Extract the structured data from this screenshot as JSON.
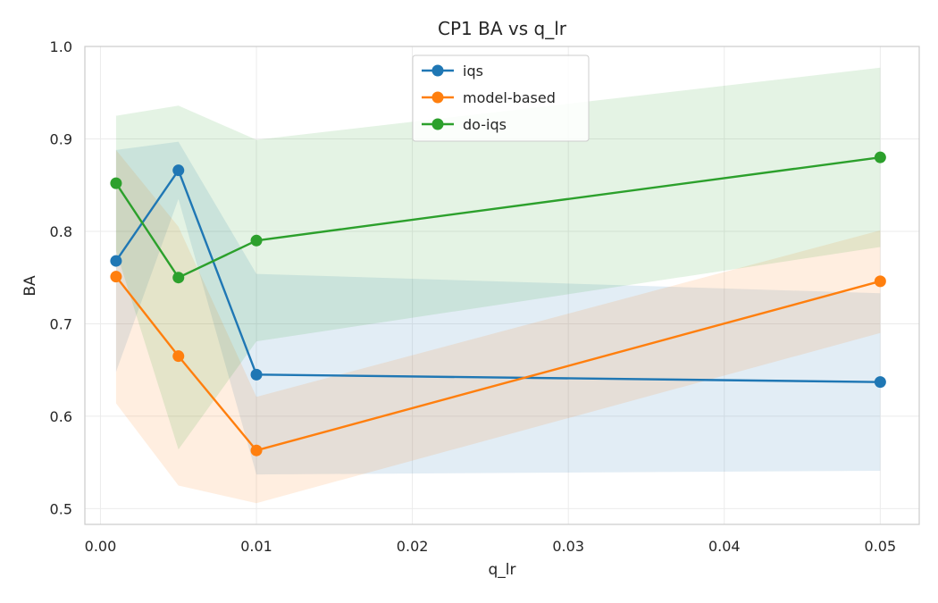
{
  "chart_data": {
    "type": "line",
    "title": "CP1 BA vs q_lr",
    "xlabel": "q_lr",
    "ylabel": "BA",
    "xlim": [
      -0.001,
      0.0525
    ],
    "ylim": [
      0.483,
      1.0
    ],
    "x_ticks": [
      0.0,
      0.01,
      0.02,
      0.03,
      0.04,
      0.05
    ],
    "x_tick_labels": [
      "0.00",
      "0.01",
      "0.02",
      "0.03",
      "0.04",
      "0.05"
    ],
    "y_ticks": [
      0.5,
      0.6,
      0.7,
      0.8,
      0.9,
      1.0
    ],
    "y_tick_labels": [
      "0.5",
      "0.6",
      "0.7",
      "0.8",
      "0.9",
      "1.0"
    ],
    "grid": true,
    "legend_position": "top-center",
    "x": [
      0.001,
      0.005,
      0.01,
      0.05
    ],
    "series": [
      {
        "name": "iqs",
        "color": "#1f77b4",
        "values": [
          0.768,
          0.866,
          0.645,
          0.637
        ],
        "band_upper": [
          0.888,
          0.897,
          0.754,
          0.733
        ],
        "band_lower": [
          0.648,
          0.835,
          0.537,
          0.541
        ]
      },
      {
        "name": "model-based",
        "color": "#ff7f0e",
        "values": [
          0.751,
          0.665,
          0.563,
          0.746
        ],
        "band_upper": [
          0.888,
          0.805,
          0.621,
          0.801
        ],
        "band_lower": [
          0.614,
          0.525,
          0.506,
          0.69
        ]
      },
      {
        "name": "do-iqs",
        "color": "#2ca02c",
        "values": [
          0.852,
          0.75,
          0.79,
          0.88
        ],
        "band_upper": [
          0.925,
          0.936,
          0.899,
          0.977
        ],
        "band_lower": [
          0.779,
          0.564,
          0.681,
          0.783
        ]
      }
    ]
  }
}
